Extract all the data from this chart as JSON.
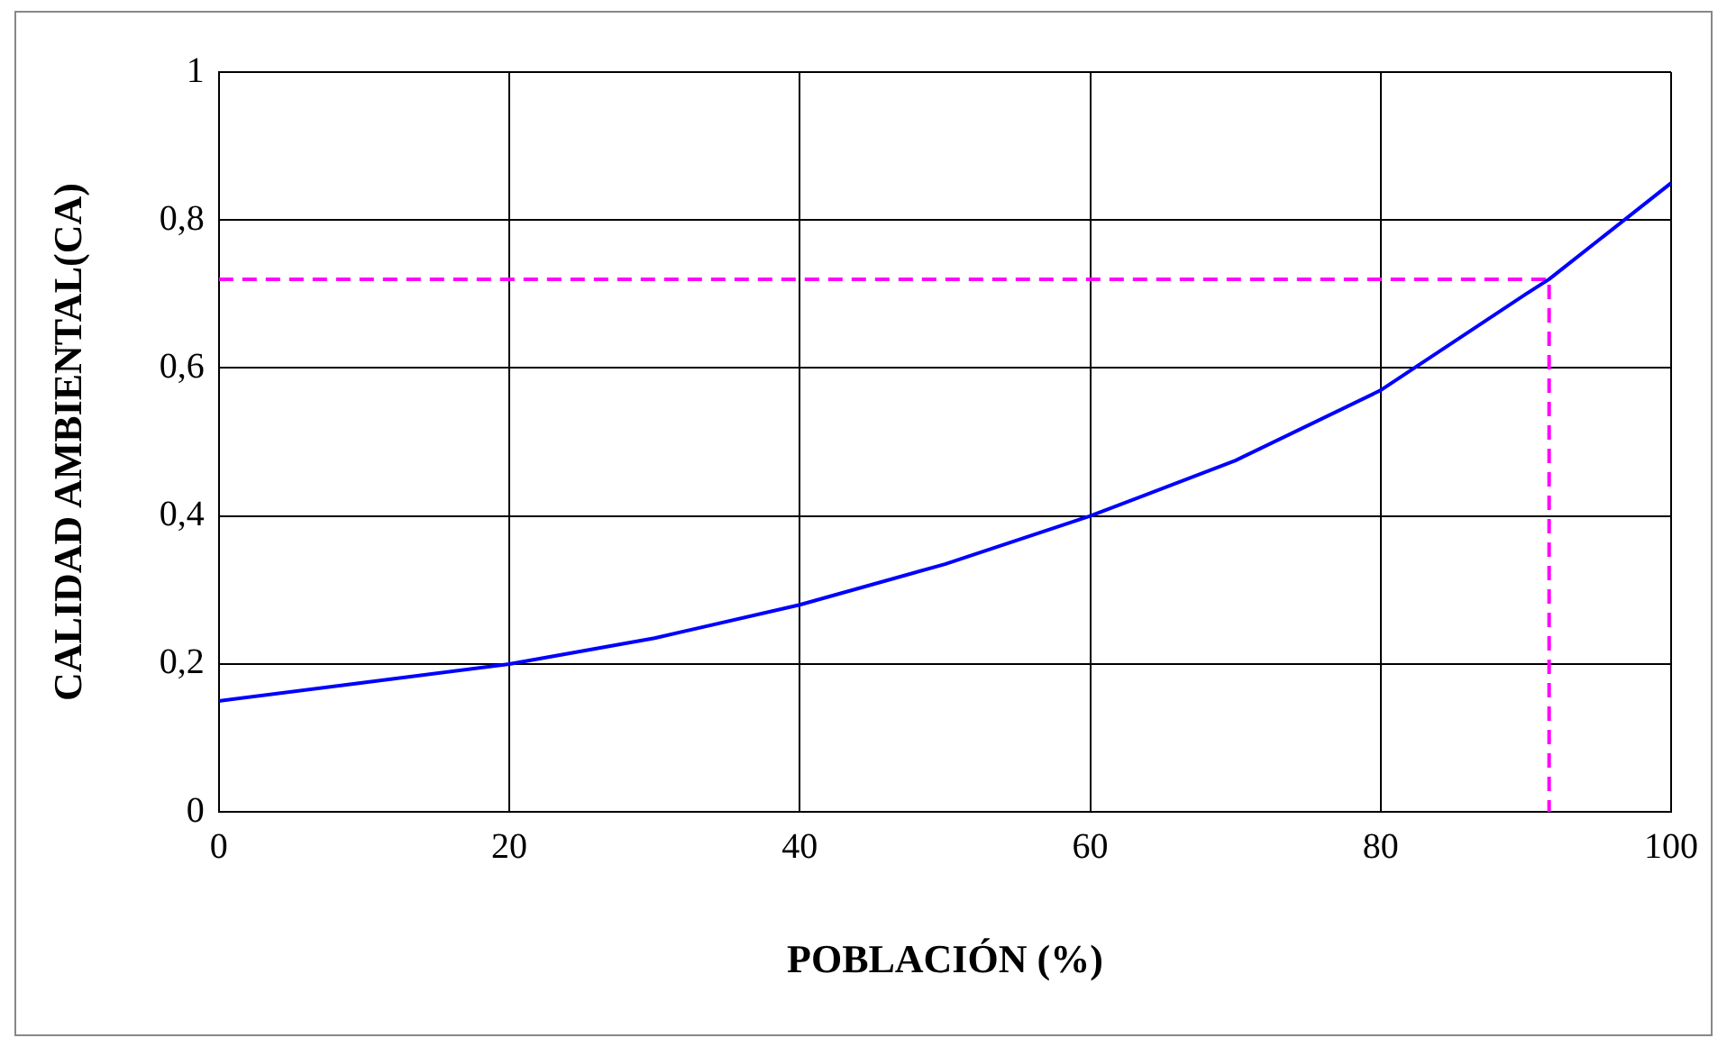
{
  "chart_data": {
    "type": "line",
    "xlabel": "POBLACIÓN (%)",
    "ylabel": "CALIDAD AMBIENTAL(CA)",
    "xlim": [
      0,
      100
    ],
    "xticks": [
      0,
      20,
      40,
      60,
      80,
      100
    ],
    "ylim": [
      0,
      1
    ],
    "yticks": [
      0,
      {
        "value": 0.2,
        "label": "0,2"
      },
      {
        "value": 0.4,
        "label": "0,4"
      },
      {
        "value": 0.6,
        "label": "0,6"
      },
      {
        "value": 0.8,
        "label": "0,8"
      },
      1
    ],
    "grid": true,
    "legend": false,
    "marker": "none",
    "series": [
      {
        "color": "#0000ff",
        "line_style": "solid",
        "x": [
          0,
          10,
          20,
          30,
          40,
          50,
          60,
          70,
          80,
          90,
          91.6,
          100
        ],
        "values": [
          0.15,
          0.175,
          0.2,
          0.235,
          0.28,
          0.335,
          0.4,
          0.475,
          0.57,
          0.7,
          0.72,
          0.85
        ]
      },
      {
        "color": "#ff00ff",
        "line_style": "dashed",
        "x": [
          0,
          91.6,
          91.6
        ],
        "values": [
          0.72,
          0.72,
          0
        ]
      }
    ]
  }
}
